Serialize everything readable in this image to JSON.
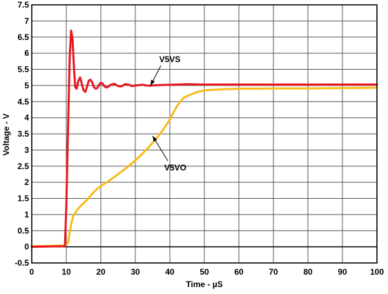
{
  "chart_data": {
    "type": "line",
    "title": "",
    "xlabel": "Time - µS",
    "ylabel": "Voltage - V",
    "xlim": [
      0,
      100
    ],
    "ylim": [
      -0.5,
      7.5
    ],
    "x_ticks": [
      0,
      10,
      20,
      30,
      40,
      50,
      60,
      70,
      80,
      90,
      100
    ],
    "y_ticks": [
      -0.5,
      0,
      0.5,
      1,
      1.5,
      2,
      2.5,
      3,
      3.5,
      4,
      4.5,
      5,
      5.5,
      6,
      6.5,
      7,
      7.5
    ],
    "x_tick_labels": [
      "0",
      "10",
      "20",
      "30",
      "40",
      "50",
      "60",
      "70",
      "80",
      "90",
      "100"
    ],
    "y_tick_labels": [
      "-0.5",
      "0",
      "0.5",
      "1",
      "1.5",
      "2",
      "2.5",
      "3",
      "3.5",
      "4",
      "4.5",
      "5",
      "5.5",
      "6",
      "6.5",
      "7",
      "7.5"
    ],
    "grid": true,
    "series": [
      {
        "name": "V5VS",
        "color": "#e8171f",
        "x": [
          0,
          9.6,
          10,
          10.5,
          11,
          11.4,
          11.8,
          12.2,
          12.6,
          13,
          13.5,
          14,
          14.5,
          15,
          15.5,
          16,
          16.5,
          17,
          17.5,
          18,
          18.5,
          19,
          19.5,
          20,
          20.5,
          21,
          21.5,
          22,
          23,
          24,
          25,
          26,
          27,
          28,
          29,
          30,
          32,
          34,
          36,
          40,
          45,
          50,
          60,
          70,
          80,
          90,
          100
        ],
        "y": [
          0,
          0.02,
          1.2,
          3.6,
          5.9,
          6.7,
          6.45,
          5.6,
          4.95,
          4.9,
          5.15,
          5.25,
          5.05,
          4.85,
          4.8,
          4.95,
          5.15,
          5.18,
          5.1,
          4.95,
          4.9,
          4.92,
          5.02,
          5.08,
          5.06,
          4.98,
          4.94,
          4.95,
          5.03,
          5.05,
          4.98,
          4.97,
          5.04,
          5.03,
          4.98,
          5.0,
          5.02,
          4.99,
          5.01,
          5.02,
          5.04,
          5.03,
          5.03,
          5.03,
          5.03,
          5.03,
          5.03
        ]
      },
      {
        "name": "V5VO",
        "color": "#f5bc1c",
        "x": [
          0,
          9.5,
          10.5,
          11,
          11.5,
          12,
          13,
          14,
          15,
          16,
          17,
          18,
          19,
          20,
          22,
          24,
          26,
          28,
          30,
          32,
          34,
          36,
          38,
          40,
          41,
          42,
          43,
          44,
          46,
          48,
          50,
          55,
          60,
          65,
          70,
          80,
          90,
          100
        ],
        "y": [
          0.02,
          0.04,
          0.12,
          0.45,
          0.75,
          0.95,
          1.12,
          1.25,
          1.35,
          1.45,
          1.58,
          1.7,
          1.8,
          1.88,
          2.02,
          2.17,
          2.33,
          2.5,
          2.68,
          2.88,
          3.1,
          3.35,
          3.62,
          3.95,
          4.15,
          4.35,
          4.5,
          4.62,
          4.72,
          4.8,
          4.85,
          4.88,
          4.9,
          4.9,
          4.91,
          4.91,
          4.92,
          4.93
        ]
      }
    ],
    "annotations": [
      {
        "text": "V5VS",
        "points_to": [
          35.5,
          5.02
        ]
      },
      {
        "text": "V5VO",
        "points_to": [
          35.5,
          3.2
        ]
      }
    ]
  }
}
